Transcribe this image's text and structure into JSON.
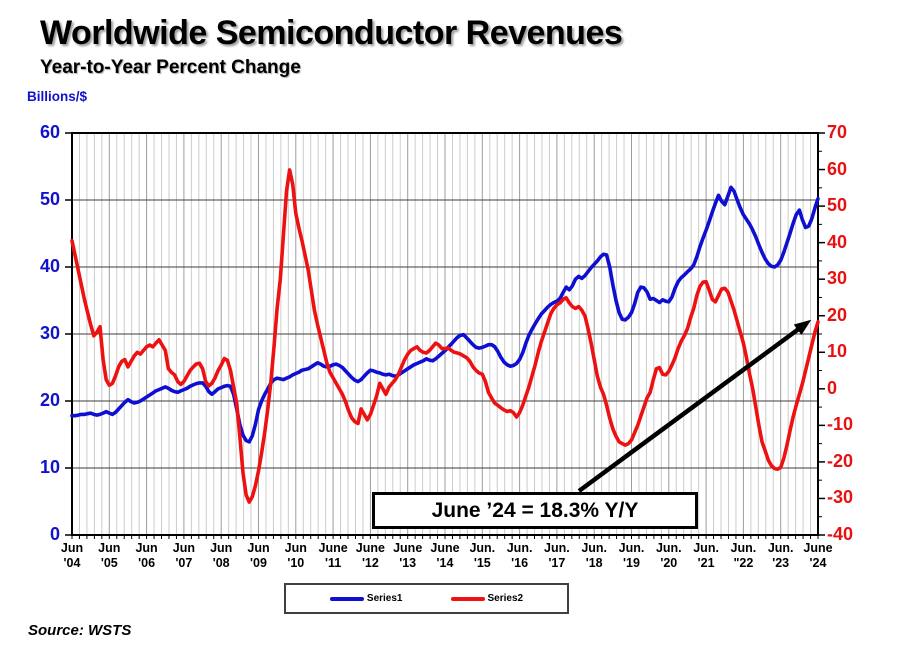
{
  "header": {
    "title": "Worldwide Semiconductor Revenues",
    "subtitle": "Year-to-Year Percent Change"
  },
  "axes": {
    "left_unit": "Billions/$",
    "left_tick_color": "#1212cc",
    "right_tick_color": "#e81111",
    "x_tick_labels": [
      "Jun\n'04",
      "Jun\n'05",
      "Jun\n'06",
      "Jun\n'07",
      "Jun\n'08",
      "Jun\n'09",
      "Jun\n'10",
      "June\n'11",
      "June\n'12",
      "June\n'13",
      "June\n'14",
      "Jun.\n'15",
      "Jun.\n'16",
      "Jun.\n'17",
      "Jun.\n'18",
      "Jun.\n'19",
      "Jun.\n'20",
      "Jun.\n'21",
      "Jun.\n\"22",
      "Jun.\n'23",
      "June\n'24"
    ]
  },
  "source": "Source: WSTS",
  "chart_data": {
    "type": "line",
    "title": "Worldwide Semiconductor Revenues",
    "subtitle": "Year-to-Year Percent Change",
    "x_unit": "month",
    "x_range": [
      "Jun 2004",
      "Jun 2024"
    ],
    "points_per_year": 12,
    "grid": true,
    "legend_position": "bottom",
    "annotation": "June ’24 = 18.3% Y/Y",
    "left_axis": {
      "label": "Billions/$",
      "min": 0,
      "max": 60,
      "ticks": [
        60,
        50,
        40,
        30,
        20,
        10,
        0
      ],
      "tick_color": "#1212cc"
    },
    "right_axis": {
      "min": -40,
      "max": 70,
      "ticks": [
        70,
        60,
        50,
        40,
        30,
        20,
        10,
        0,
        -10,
        -20,
        -30,
        -40
      ],
      "tick_color": "#e81111"
    },
    "series": [
      {
        "name": "Series1",
        "axis": "left",
        "color": "#0f0fd2",
        "values": [
          17.8,
          17.8,
          17.9,
          18.0,
          18.0,
          18.1,
          18.2,
          18.0,
          17.9,
          18.0,
          18.2,
          18.4,
          18.2,
          18.0,
          18.3,
          18.8,
          19.3,
          19.8,
          20.2,
          19.9,
          19.7,
          19.8,
          20.0,
          20.3,
          20.6,
          20.9,
          21.2,
          21.5,
          21.7,
          21.9,
          22.1,
          21.9,
          21.6,
          21.4,
          21.3,
          21.5,
          21.7,
          21.9,
          22.2,
          22.4,
          22.6,
          22.7,
          22.7,
          22.2,
          21.4,
          21.0,
          21.4,
          21.8,
          22.0,
          22.2,
          22.3,
          22.2,
          21.0,
          18.8,
          16.5,
          14.9,
          14.1,
          13.9,
          14.8,
          16.5,
          18.7,
          20.0,
          21.0,
          21.8,
          22.7,
          23.2,
          23.4,
          23.3,
          23.2,
          23.4,
          23.6,
          23.9,
          24.1,
          24.3,
          24.6,
          24.7,
          24.8,
          25.1,
          25.4,
          25.7,
          25.5,
          25.2,
          25.1,
          25.2,
          25.4,
          25.5,
          25.3,
          25.0,
          24.5,
          24.0,
          23.5,
          23.1,
          22.9,
          23.2,
          23.7,
          24.2,
          24.6,
          24.5,
          24.3,
          24.2,
          24.0,
          23.9,
          24.0,
          23.8,
          23.7,
          23.9,
          24.2,
          24.5,
          24.8,
          25.1,
          25.4,
          25.6,
          25.8,
          26.0,
          26.3,
          26.1,
          26.0,
          26.3,
          26.7,
          27.1,
          27.5,
          28.0,
          28.5,
          29.0,
          29.5,
          29.8,
          29.9,
          29.4,
          28.9,
          28.4,
          28.0,
          27.9,
          28.0,
          28.2,
          28.4,
          28.4,
          28.1,
          27.4,
          26.5,
          25.8,
          25.4,
          25.2,
          25.3,
          25.6,
          26.2,
          27.2,
          28.6,
          29.8,
          30.7,
          31.5,
          32.3,
          33.0,
          33.5,
          34.0,
          34.4,
          34.7,
          34.9,
          35.3,
          36.2,
          37.0,
          36.6,
          37.2,
          38.2,
          38.6,
          38.3,
          38.7,
          39.3,
          39.9,
          40.4,
          40.9,
          41.5,
          41.9,
          41.8,
          40.0,
          37.3,
          35.0,
          33.2,
          32.2,
          32.1,
          32.5,
          33.2,
          34.5,
          36.2,
          37.0,
          36.9,
          36.3,
          35.2,
          35.3,
          35.0,
          34.7,
          35.1,
          34.9,
          34.8,
          35.5,
          36.8,
          37.8,
          38.4,
          38.8,
          39.3,
          39.7,
          40.3,
          41.5,
          43.0,
          44.3,
          45.5,
          46.8,
          48.2,
          49.5,
          50.7,
          49.8,
          49.3,
          50.6,
          51.9,
          51.3,
          50.0,
          48.8,
          47.8,
          47.1,
          46.4,
          45.5,
          44.5,
          43.3,
          42.2,
          41.2,
          40.5,
          40.1,
          40.0,
          40.3,
          41.0,
          42.2,
          43.6,
          45.0,
          46.5,
          47.8,
          48.5,
          47.0,
          45.9,
          46.1,
          47.2,
          48.8,
          50.2
        ]
      },
      {
        "name": "Series2",
        "axis": "right",
        "color": "#ee1111",
        "values": [
          40.5,
          36.5,
          32.5,
          28.5,
          24.5,
          21.0,
          17.5,
          14.5,
          15.5,
          17.0,
          8.0,
          2.5,
          1.0,
          1.5,
          3.5,
          6.0,
          7.5,
          8.0,
          6.0,
          7.5,
          9.0,
          10.0,
          9.5,
          10.5,
          11.5,
          12.0,
          11.5,
          12.5,
          13.4,
          12.0,
          10.5,
          5.5,
          4.5,
          3.8,
          2.0,
          1.2,
          2.0,
          3.5,
          5.0,
          6.0,
          6.8,
          7.0,
          5.5,
          2.0,
          0.8,
          1.5,
          3.0,
          5.0,
          6.5,
          8.3,
          7.8,
          5.0,
          0.5,
          -4.0,
          -13.0,
          -23.0,
          -29.0,
          -31.0,
          -29.5,
          -26.5,
          -22.5,
          -17.5,
          -12.0,
          -5.5,
          2.0,
          11.5,
          22.0,
          30.0,
          42.0,
          54.0,
          59.9,
          56.0,
          48.0,
          44.0,
          40.5,
          36.5,
          32.5,
          27.0,
          21.5,
          17.5,
          14.0,
          10.5,
          7.0,
          4.5,
          3.0,
          1.5,
          0.0,
          -1.5,
          -3.5,
          -6.0,
          -8.0,
          -9.0,
          -9.5,
          -5.5,
          -7.0,
          -8.5,
          -7.0,
          -4.5,
          -2.0,
          1.5,
          0.0,
          -1.5,
          0.5,
          1.5,
          2.5,
          4.0,
          6.0,
          8.0,
          9.5,
          10.5,
          11.0,
          11.5,
          10.5,
          10.0,
          9.8,
          10.5,
          11.5,
          12.5,
          12.0,
          11.0,
          11.0,
          11.2,
          10.5,
          10.0,
          9.8,
          9.5,
          9.0,
          8.5,
          7.5,
          6.0,
          5.0,
          4.3,
          4.0,
          2.0,
          -1.0,
          -2.5,
          -3.9,
          -4.5,
          -5.2,
          -5.8,
          -6.2,
          -6.0,
          -6.5,
          -7.7,
          -6.5,
          -4.5,
          -2.0,
          0.5,
          3.5,
          6.5,
          10.0,
          13.0,
          15.5,
          18.0,
          20.5,
          22.0,
          23.0,
          23.5,
          24.5,
          24.9,
          23.5,
          22.5,
          22.0,
          22.5,
          21.5,
          20.0,
          16.5,
          12.5,
          8.0,
          3.5,
          0.5,
          -1.5,
          -4.5,
          -8.0,
          -11.0,
          -13.0,
          -14.5,
          -15.0,
          -15.4,
          -15.0,
          -14.0,
          -12.0,
          -10.0,
          -7.5,
          -5.0,
          -2.5,
          -1.0,
          2.5,
          5.5,
          5.8,
          4.0,
          3.8,
          4.8,
          6.5,
          8.5,
          11.0,
          13.0,
          14.5,
          16.5,
          19.5,
          22.0,
          25.5,
          28.0,
          29.2,
          29.3,
          27.0,
          24.5,
          23.8,
          25.5,
          27.3,
          27.5,
          26.5,
          24.0,
          21.5,
          18.5,
          15.5,
          12.5,
          8.5,
          4.0,
          0.0,
          -5.0,
          -10.0,
          -14.5,
          -17.0,
          -19.5,
          -21.0,
          -21.8,
          -22.0,
          -21.5,
          -19.0,
          -15.5,
          -11.5,
          -7.7,
          -4.5,
          -1.5,
          1.5,
          5.0,
          8.5,
          12.0,
          15.5,
          18.3
        ]
      }
    ]
  }
}
